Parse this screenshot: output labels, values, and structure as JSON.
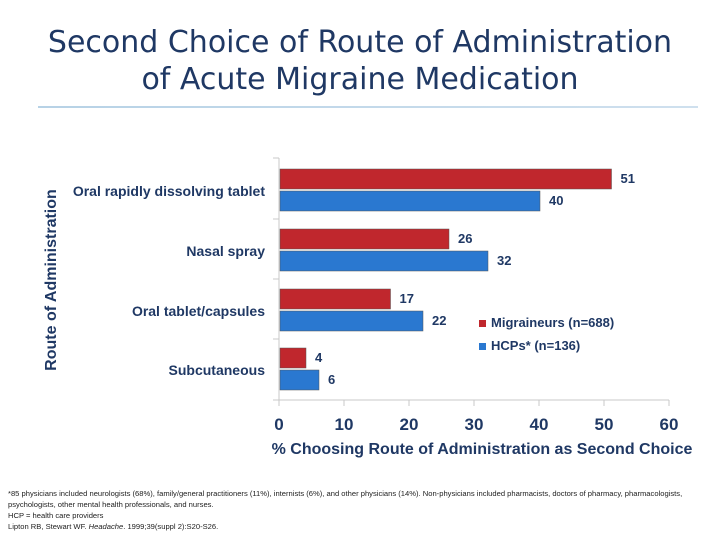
{
  "title_line1": "Second Choice of Route of Administration",
  "title_line2": "of Acute Migraine Medication",
  "colors": {
    "migraineurs": "#c0272d",
    "hcps": "#2a78d0",
    "axis": "#c8c8c8"
  },
  "chart_data": {
    "type": "bar",
    "orientation": "horizontal",
    "categories": [
      "Oral rapidly dissolving tablet",
      "Nasal spray",
      "Oral tablet/capsules",
      "Subcutaneous"
    ],
    "series": [
      {
        "name": "Migraineurs (n=688)",
        "values": [
          51,
          26,
          17,
          4
        ]
      },
      {
        "name": "HCPs* (n=136)",
        "values": [
          40,
          32,
          22,
          6
        ]
      }
    ],
    "xlabel": "% Choosing Route of Administration as Second Choice",
    "ylabel": "Route of Administration",
    "xlim": [
      0,
      60
    ],
    "xticks": [
      0,
      10,
      20,
      30,
      40,
      50,
      60
    ],
    "legend_position": "right"
  },
  "footnotes": {
    "line1": "*85 physicians included neurologists (68%), family/general practitioners (11%), internists (6%), and other physicians (14%). Non-physicians included pharmacists, doctors of pharmacy, pharmacologists, psychologists, other mental health professionals, and nurses.",
    "line2": "HCP = health care providers",
    "line3_authors": "Lipton RB, Stewart WF. ",
    "line3_journal": "Headache",
    "line3_rest": ". 1999;39(suppl 2):S20-S26."
  }
}
